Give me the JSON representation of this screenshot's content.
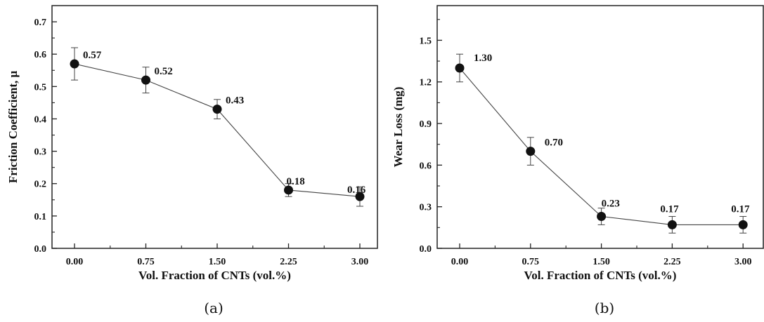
{
  "chart_data": [
    {
      "type": "line",
      "panel": "(a)",
      "x": [
        "0.00",
        "0.75",
        "1.50",
        "2.25",
        "3.00"
      ],
      "values": [
        0.57,
        0.52,
        0.43,
        0.18,
        0.16
      ],
      "errors": [
        0.05,
        0.04,
        0.03,
        0.02,
        0.03
      ],
      "data_labels": [
        "0.57",
        "0.52",
        "0.43",
        "0.18",
        "0.16"
      ],
      "xlabel": "Vol. Fraction of CNTs (vol.%)",
      "ylabel": "Friction Coefficient, μ",
      "ylim": [
        0,
        0.75
      ],
      "yticks": [
        "0.0",
        "0.1",
        "0.2",
        "0.3",
        "0.4",
        "0.5",
        "0.6",
        "0.7"
      ],
      "grid": false
    },
    {
      "type": "line",
      "panel": "(b)",
      "x": [
        "0.00",
        "0.75",
        "1.50",
        "2.25",
        "3.00"
      ],
      "values": [
        1.3,
        0.7,
        0.23,
        0.17,
        0.17
      ],
      "errors": [
        0.1,
        0.1,
        0.06,
        0.06,
        0.06
      ],
      "data_labels": [
        "1.30",
        "0.70",
        "0.23",
        "0.17",
        "0.17"
      ],
      "xlabel": "Vol. Fraction of CNTs (vol.%)",
      "ylabel": "Wear Loss (mg)",
      "ylim": [
        0,
        1.75
      ],
      "yticks": [
        "0.0",
        "0.3",
        "0.6",
        "0.9",
        "1.2",
        "1.5"
      ],
      "grid": false
    }
  ]
}
